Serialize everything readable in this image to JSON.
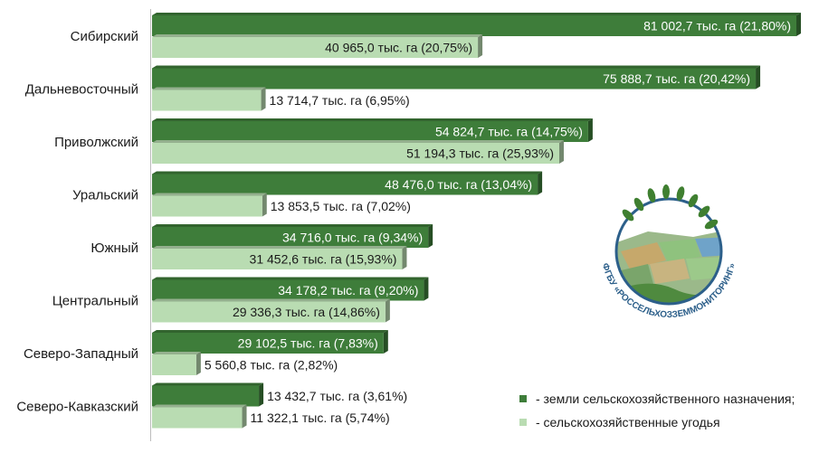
{
  "chart_data": {
    "type": "bar",
    "orientation": "horizontal",
    "categories": [
      "Сибирский",
      "Дальневосточный",
      "Приволжский",
      "Уральский",
      "Южный",
      "Центральный",
      "Северо-Западный",
      "Северо-Кавказский"
    ],
    "series": [
      {
        "name": "- земли сельскохозяйственного назначения;",
        "color": "#3e7d3a",
        "values": [
          81002.7,
          75888.7,
          54824.7,
          48476.0,
          34716.0,
          34178.2,
          29102.5,
          13432.7
        ],
        "labels": [
          "81 002,7 тыс. га (21,80%)",
          "75 888,7 тыс. га (20,42%)",
          "54 824,7 тыс. га (14,75%)",
          "48 476,0 тыс. га (13,04%)",
          "34 716,0 тыс. га (9,34%)",
          "34 178,2 тыс. га (9,20%)",
          "29 102,5 тыс. га (7,83%)",
          "13 432,7 тыс. га (3,61%)"
        ]
      },
      {
        "name": "- сельскохозяйственные угодья",
        "color": "#b9dcb2",
        "values": [
          40965.0,
          13714.7,
          51194.3,
          13853.5,
          31452.6,
          29336.3,
          5560.8,
          11322.1
        ],
        "labels": [
          "40 965,0 тыс. га (20,75%)",
          "13 714,7 тыс. га (6,95%)",
          "51 194,3 тыс. га (25,93%)",
          "13 853,5 тыс. га (7,02%)",
          "31 452,6 тыс. га (15,93%)",
          "29 336,3 тыс. га (14,86%)",
          "5 560,8 тыс. га (2,82%)",
          "11 322,1 тыс. га (5,74%)"
        ]
      }
    ],
    "xlim": [
      0,
      81002.7
    ],
    "legend_position": "bottom-right",
    "grid": false
  },
  "logo": {
    "text": "ФГБУ «РОССЕЛЬХОЗЗЕММОНИТОРИНГ»"
  }
}
